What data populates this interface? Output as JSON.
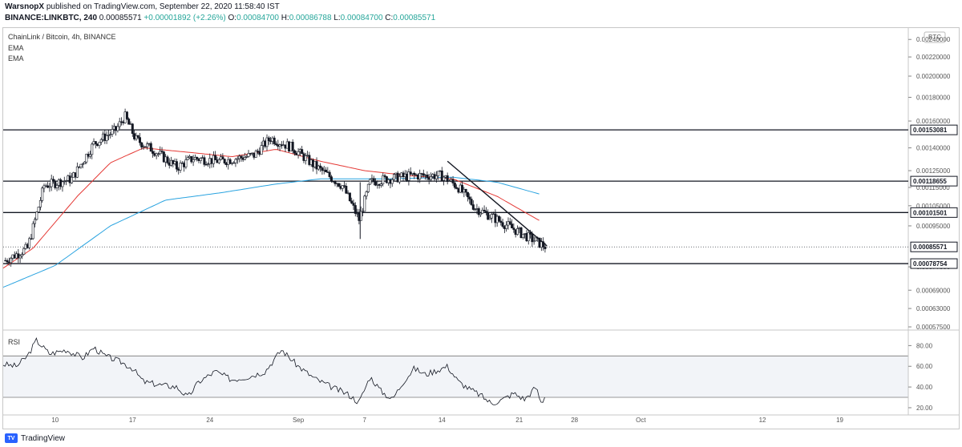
{
  "header": {
    "publisher": "WarsnopX",
    "published_text": " published on TradingView.com, September 22, 2020 11:58:40 IST",
    "symbol": "BINANCE:LINKBTC, 240",
    "last": "0.00085571",
    "change": "+0.00001892 (+2.26%)",
    "o_label": "O:",
    "o": "0.00084700",
    "h_label": "H:",
    "h": "0.00086788",
    "l_label": "L:",
    "l": "0.00084700",
    "c_label": "C:",
    "c": "0.00085571"
  },
  "legend": {
    "title": "ChainLink / Bitcoin, 4h, BINANCE",
    "ema1": "EMA",
    "ema2": "EMA",
    "rsi": "RSI"
  },
  "footer": {
    "brand": "TradingView",
    "logo_text": "TV"
  },
  "colors": {
    "up": "#131722",
    "down": "#131722",
    "ema_fast": "#e53935",
    "ema_slow": "#29a3e0",
    "level": "#131722",
    "rsi": "#131722",
    "rsi_band": "#f2f4f8"
  },
  "chart_data": [
    {
      "type": "candlestick",
      "title": "ChainLink / Bitcoin, 4h, BINANCE",
      "unit": "BTC",
      "y_scale": "log",
      "ylim": [
        0.000566,
        0.00254
      ],
      "y_ticks": [
        "0.00240000",
        "0.00220000",
        "0.00200000",
        "0.00180000",
        "0.00160000",
        "0.00140000",
        "0.00125000",
        "0.00115000",
        "0.00105000",
        "0.00095000",
        "0.00077500",
        "0.00069000",
        "0.00063000",
        "0.00057500"
      ],
      "x_ticks": [
        "10",
        "17",
        "24",
        "Sep",
        "7",
        "14",
        "21",
        "28",
        "Oct",
        "12",
        "19"
      ],
      "x_tick_days": [
        10,
        17,
        24,
        32,
        38,
        45,
        52,
        57,
        63,
        74,
        81
      ],
      "x_day_range": [
        5.3,
        87.2
      ],
      "horizontal_levels": [
        0.00153081,
        0.00118655,
        0.00101501,
        0.00078754
      ],
      "last_price": 0.00085571,
      "trendline": {
        "from": {
          "day": 45.5,
          "price": 0.00131
        },
        "to": {
          "day": 54.5,
          "price": 0.00086
        }
      },
      "candle_closes_key_days": [
        {
          "day": 5.5,
          "close": 0.0008
        },
        {
          "day": 7.5,
          "close": 0.00085
        },
        {
          "day": 9.0,
          "close": 0.00116
        },
        {
          "day": 11.5,
          "close": 0.0012
        },
        {
          "day": 13.5,
          "close": 0.00143
        },
        {
          "day": 15.5,
          "close": 0.00153
        },
        {
          "day": 16.3,
          "close": 0.00164
        },
        {
          "day": 17.3,
          "close": 0.00146
        },
        {
          "day": 19.0,
          "close": 0.00138
        },
        {
          "day": 21.0,
          "close": 0.00127
        },
        {
          "day": 22.5,
          "close": 0.00133
        },
        {
          "day": 25.0,
          "close": 0.00131
        },
        {
          "day": 28.0,
          "close": 0.00135
        },
        {
          "day": 29.5,
          "close": 0.00147
        },
        {
          "day": 31.5,
          "close": 0.0014
        },
        {
          "day": 33.5,
          "close": 0.00128
        },
        {
          "day": 36.0,
          "close": 0.00116
        },
        {
          "day": 37.5,
          "close": 0.00098
        },
        {
          "day": 38.5,
          "close": 0.00118
        },
        {
          "day": 40.0,
          "close": 0.0012
        },
        {
          "day": 42.5,
          "close": 0.00122
        },
        {
          "day": 45.0,
          "close": 0.00122
        },
        {
          "day": 46.5,
          "close": 0.00115
        },
        {
          "day": 48.0,
          "close": 0.00104
        },
        {
          "day": 50.0,
          "close": 0.00098
        },
        {
          "day": 52.0,
          "close": 0.00092
        },
        {
          "day": 53.5,
          "close": 0.00088
        },
        {
          "day": 54.4,
          "close": 0.000856
        }
      ],
      "ema_fast": [
        {
          "day": 5.3,
          "value": 0.00077
        },
        {
          "day": 8,
          "value": 0.00085
        },
        {
          "day": 12,
          "value": 0.0011
        },
        {
          "day": 15,
          "value": 0.0013
        },
        {
          "day": 18,
          "value": 0.0014
        },
        {
          "day": 22,
          "value": 0.00137
        },
        {
          "day": 26,
          "value": 0.00134
        },
        {
          "day": 30,
          "value": 0.00139
        },
        {
          "day": 34,
          "value": 0.00131
        },
        {
          "day": 38,
          "value": 0.00125
        },
        {
          "day": 42,
          "value": 0.00122
        },
        {
          "day": 46,
          "value": 0.0012
        },
        {
          "day": 50,
          "value": 0.0011
        },
        {
          "day": 54,
          "value": 0.00097
        }
      ],
      "ema_slow": [
        {
          "day": 5.3,
          "value": 0.0007
        },
        {
          "day": 10,
          "value": 0.00078
        },
        {
          "day": 15,
          "value": 0.00095
        },
        {
          "day": 20,
          "value": 0.00108
        },
        {
          "day": 25,
          "value": 0.00112
        },
        {
          "day": 30,
          "value": 0.00117
        },
        {
          "day": 34,
          "value": 0.0012
        },
        {
          "day": 40,
          "value": 0.0012
        },
        {
          "day": 46,
          "value": 0.00121
        },
        {
          "day": 50,
          "value": 0.00118
        },
        {
          "day": 54,
          "value": 0.00111
        }
      ]
    },
    {
      "type": "line",
      "title": "RSI",
      "ylim": [
        13,
        95
      ],
      "y_ticks": [
        80,
        60,
        40,
        20
      ],
      "bands": [
        70,
        30
      ],
      "points": [
        {
          "day": 5.3,
          "value": 62
        },
        {
          "day": 6.5,
          "value": 60
        },
        {
          "day": 7.5,
          "value": 70
        },
        {
          "day": 8.3,
          "value": 85
        },
        {
          "day": 9.5,
          "value": 72
        },
        {
          "day": 11,
          "value": 76
        },
        {
          "day": 12.5,
          "value": 68
        },
        {
          "day": 13.5,
          "value": 78
        },
        {
          "day": 14.5,
          "value": 70
        },
        {
          "day": 16,
          "value": 64
        },
        {
          "day": 17,
          "value": 58
        },
        {
          "day": 18,
          "value": 45
        },
        {
          "day": 19.5,
          "value": 42
        },
        {
          "day": 21,
          "value": 40
        },
        {
          "day": 22,
          "value": 30
        },
        {
          "day": 23,
          "value": 45
        },
        {
          "day": 24.5,
          "value": 55
        },
        {
          "day": 26,
          "value": 47
        },
        {
          "day": 27.5,
          "value": 50
        },
        {
          "day": 29,
          "value": 55
        },
        {
          "day": 30.5,
          "value": 76
        },
        {
          "day": 32,
          "value": 60
        },
        {
          "day": 33.5,
          "value": 48
        },
        {
          "day": 35,
          "value": 40
        },
        {
          "day": 36.5,
          "value": 33
        },
        {
          "day": 37.5,
          "value": 25
        },
        {
          "day": 38.5,
          "value": 50
        },
        {
          "day": 39.5,
          "value": 36
        },
        {
          "day": 40.5,
          "value": 28
        },
        {
          "day": 41.5,
          "value": 45
        },
        {
          "day": 42.5,
          "value": 58
        },
        {
          "day": 43.5,
          "value": 52
        },
        {
          "day": 44.5,
          "value": 56
        },
        {
          "day": 45.5,
          "value": 60
        },
        {
          "day": 46.5,
          "value": 45
        },
        {
          "day": 47.5,
          "value": 38
        },
        {
          "day": 48.5,
          "value": 32
        },
        {
          "day": 49.5,
          "value": 24
        },
        {
          "day": 50.5,
          "value": 28
        },
        {
          "day": 51.5,
          "value": 34
        },
        {
          "day": 52.5,
          "value": 28
        },
        {
          "day": 53.5,
          "value": 40
        },
        {
          "day": 54,
          "value": 24
        },
        {
          "day": 54.4,
          "value": 33
        }
      ]
    }
  ]
}
